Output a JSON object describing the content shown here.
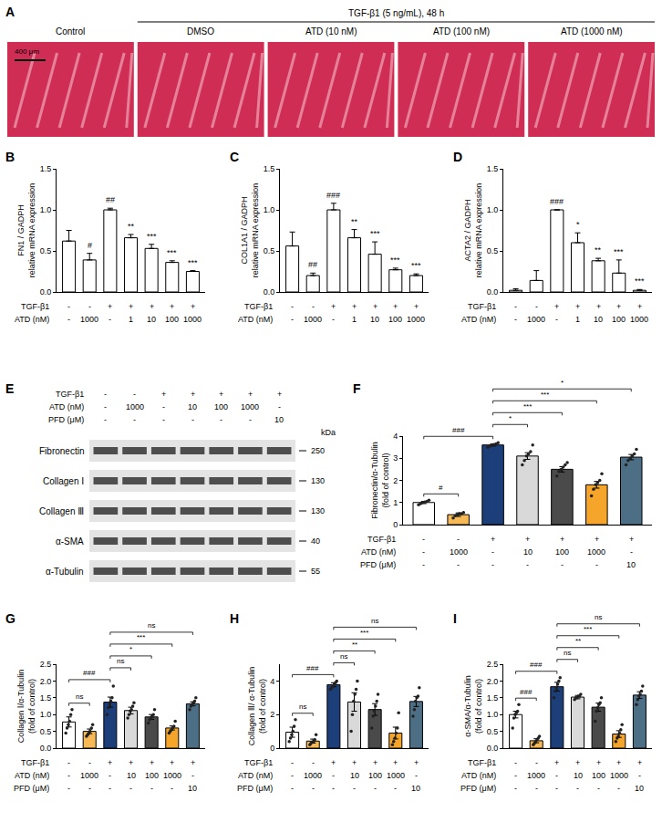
{
  "image_panel": {
    "panel": "A",
    "header": "TGF-β1 (5 ng/mL), 48 h",
    "images": [
      "Control",
      "DMSO",
      "ATD (10 nM)",
      "ATD (100 nM)",
      "ATD (1000 nM)"
    ],
    "scale_bar": "400 μm"
  },
  "blot_panel": {
    "panel": "E",
    "conditions": [
      {
        "label": "TGF-β1",
        "values": [
          "-",
          "-",
          "+",
          "+",
          "+",
          "+",
          "+"
        ]
      },
      {
        "label": "ATD (nM)",
        "values": [
          "-",
          "1000",
          "-",
          "10",
          "100",
          "1000",
          "-"
        ]
      },
      {
        "label": "PFD (μM)",
        "values": [
          "-",
          "-",
          "-",
          "-",
          "-",
          "-",
          "10"
        ]
      }
    ],
    "unit_label": "kDa",
    "bands": [
      {
        "label": "Fibronectin",
        "kda": 250
      },
      {
        "label": "Collagen Ⅰ",
        "kda": 130
      },
      {
        "label": "Collagen Ⅲ",
        "kda": 130
      },
      {
        "label": "α-SMA",
        "kda": 40
      },
      {
        "label": "α-Tubulin",
        "kda": 55
      }
    ]
  },
  "chart_data": [
    {
      "panel": "B",
      "type": "bar",
      "y_label": "FN1 / GADPH\nrelative mRNA expression",
      "categories": [
        null,
        null,
        null,
        null,
        null,
        null,
        null
      ],
      "values": [
        0.62,
        0.39,
        1.0,
        0.66,
        0.53,
        0.36,
        0.25
      ],
      "errors": [
        0.13,
        0.08,
        0.02,
        0.04,
        0.05,
        0.02,
        0.01
      ],
      "marks": [
        null,
        "#",
        "##",
        "**",
        "***",
        "***",
        "***"
      ],
      "color": "#ffffff",
      "conditions": [
        {
          "label": "TGF-β1",
          "values": [
            "-",
            "-",
            "+",
            "+",
            "+",
            "+",
            "+"
          ]
        },
        {
          "label": "ATD (nM)",
          "values": [
            "-",
            "1000",
            "-",
            "1",
            "10",
            "100",
            "1000"
          ]
        }
      ],
      "ylim": [
        0,
        1.5
      ],
      "yticks": [
        {
          "value": 0,
          "label": "0.0"
        },
        0.5,
        {
          "value": 1,
          "label": "1.0"
        },
        1.5
      ],
      "grid": false,
      "tick_labels": "y"
    },
    {
      "panel": "C",
      "type": "bar",
      "y_label": "COL1A1 / GADPH\nrelative mRNA expression",
      "categories": [
        null,
        null,
        null,
        null,
        null,
        null,
        null
      ],
      "values": [
        0.56,
        0.2,
        1.0,
        0.66,
        0.46,
        0.27,
        0.2
      ],
      "errors": [
        0.17,
        0.03,
        0.08,
        0.1,
        0.15,
        0.02,
        0.02
      ],
      "marks": [
        null,
        "##",
        "###",
        "**",
        "***",
        "***",
        "***"
      ],
      "color": "#ffffff",
      "conditions": [
        {
          "label": "TGF-β1",
          "values": [
            "-",
            "-",
            "+",
            "+",
            "+",
            "+",
            "+"
          ]
        },
        {
          "label": "ATD (nM)",
          "values": [
            "-",
            "1000",
            "-",
            "1",
            "10",
            "100",
            "1000"
          ]
        }
      ],
      "ylim": [
        0,
        1.5
      ],
      "yticks": [
        {
          "value": 0,
          "label": "0.0"
        },
        0.5,
        {
          "value": 1,
          "label": "1.0"
        },
        1.5
      ],
      "grid": false,
      "tick_labels": "y"
    },
    {
      "panel": "D",
      "type": "bar",
      "y_label": "ACTA2 / GADPH\nrelative mRNA expression",
      "categories": [
        null,
        null,
        null,
        null,
        null,
        null,
        null
      ],
      "values": [
        0.02,
        0.14,
        1.0,
        0.6,
        0.38,
        0.23,
        0.02
      ],
      "errors": [
        0.02,
        0.12,
        0.0,
        0.12,
        0.03,
        0.16,
        0.01
      ],
      "marks": [
        null,
        null,
        "###",
        "*",
        "**",
        "***",
        "***"
      ],
      "color": "#ffffff",
      "conditions": [
        {
          "label": "TGF-β1",
          "values": [
            "-",
            "-",
            "+",
            "+",
            "+",
            "+",
            "+"
          ]
        },
        {
          "label": "ATD (nM)",
          "values": [
            "-",
            "1000",
            "-",
            "1",
            "10",
            "100",
            "1000"
          ]
        }
      ],
      "ylim": [
        0,
        1.5
      ],
      "yticks": [
        {
          "value": 0,
          "label": "0.0"
        },
        0.5,
        {
          "value": 1,
          "label": "1.0"
        },
        1.5
      ],
      "grid": false,
      "tick_labels": "y"
    },
    {
      "panel": "F",
      "type": "bar",
      "y_label": "Fibronectin/α-Tubulin\n(fold of control)",
      "categories": [
        null,
        null,
        null,
        null,
        null,
        null,
        null
      ],
      "values": [
        1.0,
        0.45,
        3.6,
        3.1,
        2.5,
        1.8,
        3.05
      ],
      "errors": [
        0.05,
        0.08,
        0.05,
        0.15,
        0.12,
        0.15,
        0.12
      ],
      "points": [
        [
          0.9,
          0.95,
          1.0,
          1.02,
          1.05,
          1.1
        ],
        [
          0.3,
          0.4,
          0.45,
          0.5,
          0.5,
          0.55
        ],
        [
          3.5,
          3.55,
          3.6,
          3.62,
          3.65,
          3.7
        ],
        [
          2.7,
          2.9,
          3.1,
          3.2,
          3.3,
          3.6
        ],
        [
          2.2,
          2.4,
          2.5,
          2.6,
          2.7,
          2.8
        ],
        [
          1.3,
          1.6,
          1.8,
          1.9,
          2.0,
          2.3
        ],
        [
          2.7,
          2.9,
          3.0,
          3.1,
          3.2,
          3.4
        ]
      ],
      "colors": [
        "#ffffff",
        "#f7b955",
        "#1c3f7a",
        "#d9d9d9",
        "#4a4a4a",
        "#f5a52a",
        "#4d6f86"
      ],
      "comparisons": [
        {
          "from": 0,
          "to": 1,
          "label": "#"
        },
        {
          "from": 0,
          "to": 2,
          "label": "###"
        },
        {
          "from": 2,
          "to": 3,
          "label": "*"
        },
        {
          "from": 2,
          "to": 4,
          "label": "***"
        },
        {
          "from": 2,
          "to": 5,
          "label": "***"
        },
        {
          "from": 2,
          "to": 6,
          "label": "*"
        }
      ],
      "conditions": [
        {
          "label": "TGF-β1",
          "values": [
            "-",
            "-",
            "+",
            "+",
            "+",
            "+",
            "+"
          ]
        },
        {
          "label": "ATD (nM)",
          "values": [
            "-",
            "1000",
            "-",
            "10",
            "100",
            "1000",
            "-"
          ]
        },
        {
          "label": "PFD (μM)",
          "values": [
            "-",
            "-",
            "-",
            "-",
            "-",
            "-",
            "10"
          ]
        }
      ],
      "ylim": [
        0,
        4
      ],
      "yticks": [
        0,
        1,
        2,
        3,
        4
      ],
      "grid": false,
      "tick_labels": "y"
    },
    {
      "panel": "G",
      "type": "bar",
      "y_label": "Collagen Ⅰ/α-Tubulin\n(fold of control)",
      "categories": [
        null,
        null,
        null,
        null,
        null,
        null,
        null
      ],
      "values": [
        0.78,
        0.5,
        1.37,
        1.12,
        0.93,
        0.6,
        1.32
      ],
      "errors": [
        0.15,
        0.07,
        0.15,
        0.1,
        0.07,
        0.06,
        0.06
      ],
      "points": [
        [
          0.45,
          0.6,
          0.7,
          0.8,
          1.0,
          1.15
        ],
        [
          0.35,
          0.4,
          0.45,
          0.5,
          0.6,
          0.7
        ],
        [
          1.0,
          1.2,
          1.3,
          1.4,
          1.5,
          1.85
        ],
        [
          0.9,
          1.0,
          1.1,
          1.15,
          1.25,
          1.35
        ],
        [
          0.75,
          0.85,
          0.9,
          0.95,
          1.0,
          1.15
        ],
        [
          0.45,
          0.5,
          0.55,
          0.6,
          0.65,
          0.8
        ],
        [
          1.15,
          1.25,
          1.3,
          1.35,
          1.4,
          1.5
        ]
      ],
      "colors": [
        "#ffffff",
        "#f7b955",
        "#1c3f7a",
        "#d9d9d9",
        "#4a4a4a",
        "#f5a52a",
        "#4d6f86"
      ],
      "comparisons": [
        {
          "from": 0,
          "to": 1,
          "label": "ns"
        },
        {
          "from": 0,
          "to": 2,
          "label": "###"
        },
        {
          "from": 2,
          "to": 3,
          "label": "ns"
        },
        {
          "from": 2,
          "to": 4,
          "label": "*"
        },
        {
          "from": 2,
          "to": 5,
          "label": "***"
        },
        {
          "from": 2,
          "to": 6,
          "label": "ns"
        }
      ],
      "conditions": [
        {
          "label": "TGF-β1",
          "values": [
            "-",
            "-",
            "+",
            "+",
            "+",
            "+",
            "+"
          ]
        },
        {
          "label": "ATD (nM)",
          "values": [
            "-",
            "1000",
            "-",
            "10",
            "100",
            "1000",
            "-"
          ]
        },
        {
          "label": "PFD (μM)",
          "values": [
            "-",
            "-",
            "-",
            "-",
            "-",
            "-",
            "10"
          ]
        }
      ],
      "ylim": [
        0,
        2.5
      ],
      "yticks": [
        {
          "value": 0,
          "label": "0.0"
        },
        0.5,
        {
          "value": 1,
          "label": "1.0"
        },
        1.5,
        {
          "value": 2,
          "label": "2.0"
        },
        2.5
      ],
      "grid": false,
      "tick_labels": "y"
    },
    {
      "panel": "H",
      "type": "bar",
      "y_label": "Collagen Ⅲ/ α-Tubulin\n(fold of control)",
      "categories": [
        null,
        null,
        null,
        null,
        null,
        null,
        null
      ],
      "values": [
        0.95,
        0.42,
        3.78,
        2.75,
        2.3,
        0.9,
        2.78
      ],
      "errors": [
        0.3,
        0.12,
        0.12,
        0.55,
        0.35,
        0.35,
        0.3
      ],
      "points": [
        [
          0.4,
          0.6,
          0.8,
          1.0,
          1.3,
          1.7
        ],
        [
          0.2,
          0.3,
          0.35,
          0.4,
          0.5,
          0.8
        ],
        [
          3.5,
          3.6,
          3.7,
          3.8,
          3.9,
          4.0
        ],
        [
          1.0,
          2.0,
          2.8,
          3.2,
          3.5,
          4.0
        ],
        [
          1.2,
          1.9,
          2.2,
          2.5,
          2.8,
          3.2
        ],
        [
          0.2,
          0.4,
          0.6,
          0.9,
          1.2,
          2.1
        ],
        [
          1.9,
          2.3,
          2.8,
          3.0,
          3.1,
          3.6
        ]
      ],
      "colors": [
        "#ffffff",
        "#f7b955",
        "#1c3f7a",
        "#d9d9d9",
        "#4a4a4a",
        "#f5a52a",
        "#4d6f86"
      ],
      "comparisons": [
        {
          "from": 0,
          "to": 1,
          "label": "ns"
        },
        {
          "from": 0,
          "to": 2,
          "label": "###"
        },
        {
          "from": 2,
          "to": 3,
          "label": "ns"
        },
        {
          "from": 2,
          "to": 4,
          "label": "**"
        },
        {
          "from": 2,
          "to": 5,
          "label": "***"
        },
        {
          "from": 2,
          "to": 6,
          "label": "ns"
        }
      ],
      "conditions": [
        {
          "label": "TGF-β1",
          "values": [
            "-",
            "-",
            "+",
            "+",
            "+",
            "+",
            "+"
          ]
        },
        {
          "label": "ATD (nM)",
          "values": [
            "-",
            "1000",
            "-",
            "10",
            "100",
            "1000",
            "-"
          ]
        },
        {
          "label": "PFD (μM)",
          "values": [
            "-",
            "-",
            "-",
            "-",
            "-",
            "-",
            "10"
          ]
        }
      ],
      "ylim": [
        0,
        5
      ],
      "yticks": [
        0,
        2,
        4
      ],
      "grid": false,
      "tick_labels": "y"
    },
    {
      "panel": "I",
      "type": "bar",
      "y_label": "α-SMA/α-Tubulin\n(fold of control)",
      "categories": [
        null,
        null,
        null,
        null,
        null,
        null,
        null
      ],
      "values": [
        1.0,
        0.22,
        1.83,
        1.52,
        1.22,
        0.42,
        1.58
      ],
      "errors": [
        0.1,
        0.06,
        0.13,
        0.05,
        0.12,
        0.1,
        0.1
      ],
      "points": [
        [
          0.6,
          0.9,
          1.0,
          1.05,
          1.1,
          1.3
        ],
        [
          0.1,
          0.15,
          0.2,
          0.25,
          0.3,
          0.35
        ],
        [
          1.5,
          1.7,
          1.8,
          1.9,
          2.0,
          2.1
        ],
        [
          1.45,
          1.5,
          1.5,
          1.55,
          1.55,
          1.6
        ],
        [
          0.8,
          1.1,
          1.2,
          1.3,
          1.35,
          1.5
        ],
        [
          0.2,
          0.3,
          0.35,
          0.45,
          0.55,
          0.7
        ],
        [
          1.3,
          1.45,
          1.55,
          1.6,
          1.7,
          1.85
        ]
      ],
      "colors": [
        "#ffffff",
        "#f7b955",
        "#1c3f7a",
        "#d9d9d9",
        "#4a4a4a",
        "#f5a52a",
        "#4d6f86"
      ],
      "comparisons": [
        {
          "from": 0,
          "to": 1,
          "label": "###"
        },
        {
          "from": 0,
          "to": 2,
          "label": "###"
        },
        {
          "from": 2,
          "to": 3,
          "label": "ns"
        },
        {
          "from": 2,
          "to": 4,
          "label": "**"
        },
        {
          "from": 2,
          "to": 5,
          "label": "***"
        },
        {
          "from": 2,
          "to": 6,
          "label": "ns"
        }
      ],
      "conditions": [
        {
          "label": "TGF-β1",
          "values": [
            "-",
            "-",
            "+",
            "+",
            "+",
            "+",
            "+"
          ]
        },
        {
          "label": "ATD (nM)",
          "values": [
            "-",
            "1000",
            "-",
            "10",
            "100",
            "1000",
            "-"
          ]
        },
        {
          "label": "PFD (μM)",
          "values": [
            "-",
            "-",
            "-",
            "-",
            "-",
            "-",
            "10"
          ]
        }
      ],
      "ylim": [
        0,
        2.5
      ],
      "yticks": [
        {
          "value": 0,
          "label": "0.0"
        },
        0.5,
        {
          "value": 1,
          "label": "1.0"
        },
        1.5,
        {
          "value": 2,
          "label": "2.0"
        },
        2.5
      ],
      "grid": false,
      "tick_labels": "y"
    }
  ]
}
